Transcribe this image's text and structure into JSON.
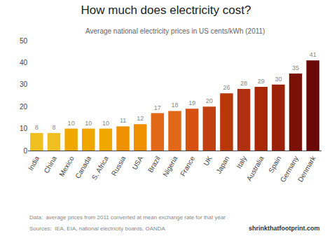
{
  "chart_data": {
    "type": "bar",
    "title": "How much does electricity cost?",
    "subtitle": "Average national electricity prices in US cents/kWh (2011)",
    "categories": [
      "India",
      "China",
      "Mexico",
      "Canada",
      "S. Africa",
      "Russia",
      "USA",
      "Brazil",
      "Nigeria",
      "France",
      "UK",
      "Japan",
      "Italy",
      "Australia",
      "Spain",
      "Germany",
      "Denmark"
    ],
    "values": [
      8,
      8,
      10,
      10,
      10,
      11,
      12,
      17,
      18,
      19,
      20,
      26,
      28,
      29,
      30,
      35,
      41
    ],
    "colors": [
      "#F0C020",
      "#F0C020",
      "#F0A800",
      "#F0A800",
      "#F0A800",
      "#EE9000",
      "#EE9000",
      "#E06818",
      "#E06818",
      "#D85010",
      "#C04010",
      "#B83808",
      "#B03010",
      "#A82808",
      "#9A2008",
      "#7A1008",
      "#6B0808"
    ],
    "ylim": [
      0,
      50
    ],
    "yticks": [
      0,
      10,
      20,
      30,
      40,
      50
    ],
    "grid": false,
    "data_labels": true,
    "annotations": [
      "Data:  average prices from 2011 converted at mean exchange rate for that year",
      "Sources:  IEA, EIA, national electricity boards, OANDA",
      "shrinkthatfootprint.com"
    ]
  }
}
